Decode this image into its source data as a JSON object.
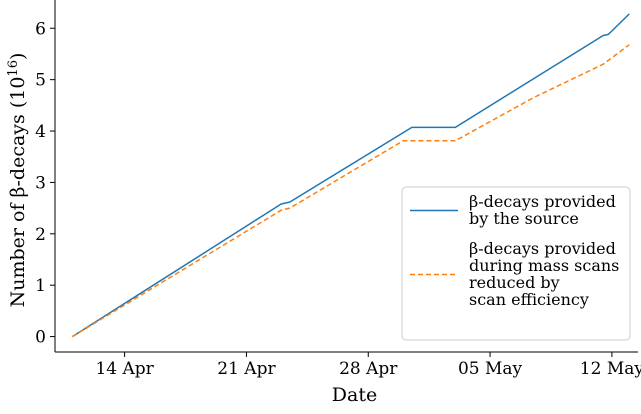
{
  "chart_data": {
    "type": "line",
    "title": "",
    "xlabel": "Date",
    "ylabel": "Number of β-decays (10",
    "ylabel_exponent": "16",
    "ylabel_suffix": ")",
    "x_ticks": [
      "2024-04-14",
      "2024-04-21",
      "2024-04-28",
      "2024-05-05",
      "2024-05-12"
    ],
    "x_tick_labels": [
      "14 Apr",
      "21 Apr",
      "28 Apr",
      "05 May",
      "12 May"
    ],
    "xlim": [
      "2024-04-10",
      "2024-05-13.5"
    ],
    "ylim": [
      -0.3,
      6.55
    ],
    "y_ticks": [
      0,
      1,
      2,
      3,
      4,
      5,
      6
    ],
    "y_tick_labels": [
      "0",
      "1",
      "2",
      "3",
      "4",
      "5",
      "6"
    ],
    "grid": false,
    "legend_position": "lower right",
    "series": [
      {
        "name": "β-decays provided by the source",
        "legend_lines": [
          "β-decays provided",
          "by the source"
        ],
        "color": "#1f77b4",
        "style": "solid",
        "points": [
          [
            "2024-04-11.0",
            0.0
          ],
          [
            "2024-04-23.0",
            2.58
          ],
          [
            "2024-04-23.5",
            2.62
          ],
          [
            "2024-04-30.5",
            4.07
          ],
          [
            "2024-05-03.0",
            4.07
          ],
          [
            "2024-05-11.5",
            5.86
          ],
          [
            "2024-05-11.8",
            5.88
          ],
          [
            "2024-05-13.0",
            6.28
          ]
        ]
      },
      {
        "name": "β-decays provided during mass scans reduced by scan efficiency",
        "legend_lines": [
          "β-decays provided",
          "during mass scans",
          "reduced by",
          "scan efficiency"
        ],
        "color": "#ff7f0e",
        "style": "dashed",
        "points": [
          [
            "2024-04-11.0",
            0.0
          ],
          [
            "2024-04-23.0",
            2.46
          ],
          [
            "2024-04-23.5",
            2.5
          ],
          [
            "2024-04-30.0",
            3.81
          ],
          [
            "2024-05-03.0",
            3.81
          ],
          [
            "2024-05-07.5",
            4.65
          ],
          [
            "2024-05-11.5",
            5.3
          ],
          [
            "2024-05-13.0",
            5.68
          ]
        ]
      }
    ]
  }
}
